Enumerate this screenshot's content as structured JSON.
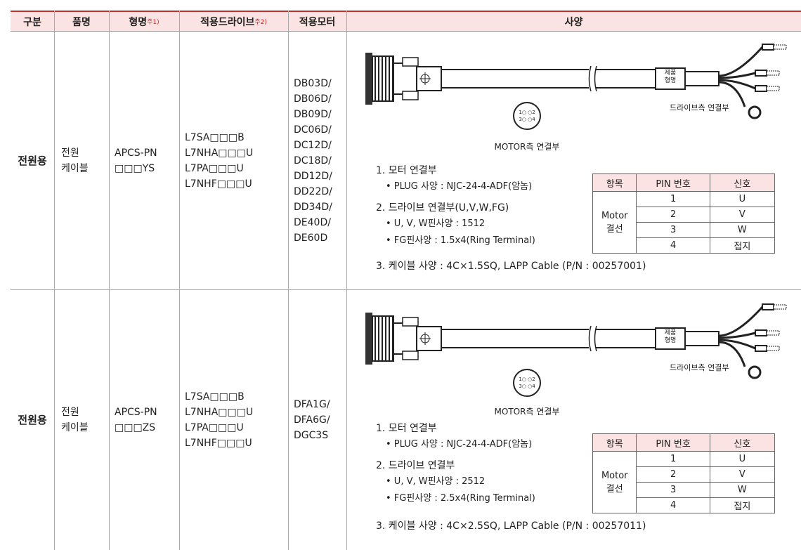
{
  "header": {
    "columns": [
      {
        "label": "구분"
      },
      {
        "label": "품명"
      },
      {
        "label": "형명",
        "note": "주1)"
      },
      {
        "label": "적용드라이브",
        "note": "주2)"
      },
      {
        "label": "적용모터"
      },
      {
        "label": "사양"
      }
    ]
  },
  "rows": [
    {
      "category": "전원용",
      "name": [
        "전원",
        "케이블"
      ],
      "model": [
        "APCS-PN",
        "□□□YS"
      ],
      "drives": [
        "L7SA□□□B",
        "L7NHA□□□U",
        "L7PA□□□U",
        "L7NHF□□□U"
      ],
      "motors": [
        "DB03D/",
        "DB06D/",
        "DB09D/",
        "DC06D/",
        "DC12D/",
        "DC18D/",
        "DD12D/",
        "DD22D/",
        "DD34D/",
        "DE40D/",
        "DE60D"
      ],
      "spec": {
        "product_tag": [
          "제품",
          "형명"
        ],
        "drive_side": "드라이브측 연결부",
        "connector_pins": [
          "1○ ○2",
          "3○ ○4"
        ],
        "motor_side": "MOTOR측 연결부",
        "items": [
          {
            "title": "1. 모터 연결부",
            "bullets": [
              "• PLUG 사양 : NJC-24-4-ADF(암놈)"
            ]
          },
          {
            "title": "2. 드라이브 연결부(U,V,W,FG)",
            "bullets": [
              "• U, V, W핀사양 : 1512",
              "• FG핀사양 : 1.5x4(Ring Terminal)"
            ]
          },
          {
            "title": "3. 케이블 사양 : 4C×1.5SQ, LAPP Cable (P/N : 00257001)"
          }
        ],
        "pin_table": {
          "headers": [
            "항목",
            "PIN 번호",
            "신호"
          ],
          "group": [
            "Motor",
            "결선"
          ],
          "rows": [
            [
              "1",
              "U"
            ],
            [
              "2",
              "V"
            ],
            [
              "3",
              "W"
            ],
            [
              "4",
              "접지"
            ]
          ]
        }
      }
    },
    {
      "category": "전원용",
      "name": [
        "전원",
        "케이블"
      ],
      "model": [
        "APCS-PN",
        "□□□ZS"
      ],
      "drives": [
        "L7SA□□□B",
        "L7NHA□□□U",
        "L7PA□□□U",
        "L7NHF□□□U"
      ],
      "motors": [
        "DFA1G/",
        "DFA6G/",
        "DGC3S"
      ],
      "spec": {
        "product_tag": [
          "제품",
          "형명"
        ],
        "drive_side": "드라이브측 연결부",
        "connector_pins": [
          "1○ ○2",
          "3○ ○4"
        ],
        "motor_side": "MOTOR측 연결부",
        "items": [
          {
            "title": "1. 모터 연결부",
            "bullets": [
              "• PLUG 사양 : NJC-24-4-ADF(암놈)"
            ]
          },
          {
            "title": "2. 드라이브 연결부",
            "bullets": [
              "• U, V, W핀사양 : 2512",
              "• FG핀사양 : 2.5x4(Ring Terminal)"
            ]
          },
          {
            "title": "3. 케이블 사양 : 4C×2.5SQ, LAPP Cable (P/N : 00257011)"
          }
        ],
        "pin_table": {
          "headers": [
            "항목",
            "PIN 번호",
            "신호"
          ],
          "group": [
            "Motor",
            "결선"
          ],
          "rows": [
            [
              "1",
              "U"
            ],
            [
              "2",
              "V"
            ],
            [
              "3",
              "W"
            ],
            [
              "4",
              "접지"
            ]
          ]
        }
      }
    }
  ]
}
